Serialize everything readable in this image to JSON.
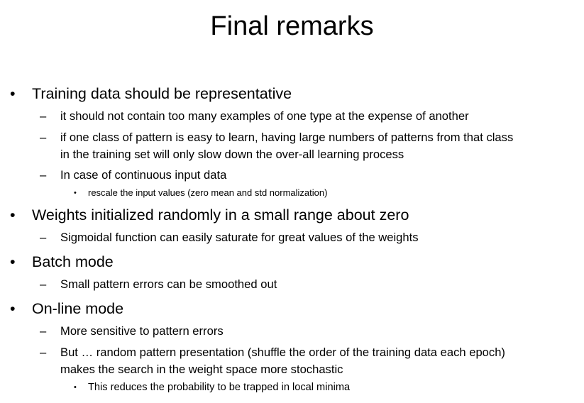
{
  "title": "Final remarks",
  "markers": {
    "l1": "•",
    "l2": "–",
    "l3": "•"
  },
  "bullets": [
    {
      "text": "Training data should be representative",
      "subs": [
        {
          "lines": [
            "it should not contain too many examples of one type at the expense of another"
          ]
        },
        {
          "lines": [
            "if one class of pattern is easy to learn, having large numbers of patterns from that class",
            "in the training set will only slow down the over-all learning process"
          ]
        },
        {
          "lines": [
            "In case of continuous input data"
          ],
          "subs": [
            "rescale the input values (zero mean and std normalization)"
          ]
        }
      ]
    },
    {
      "text": "Weights initialized randomly in a small range about zero",
      "subs": [
        {
          "lines": [
            "Sigmoidal function can easily saturate for great values of the weights"
          ]
        }
      ]
    },
    {
      "text": "Batch mode",
      "subs": [
        {
          "lines": [
            "Small pattern errors can be smoothed out"
          ]
        }
      ]
    },
    {
      "text": "On-line mode",
      "subs": [
        {
          "lines": [
            "More sensitive to pattern errors"
          ]
        },
        {
          "lines": [
            "But … random pattern presentation (shuffle the order of the training data each epoch)",
            "makes the search in the weight space more stochastic"
          ],
          "subs": [
            "This reduces the probability to be trapped in local minima"
          ]
        }
      ]
    }
  ]
}
